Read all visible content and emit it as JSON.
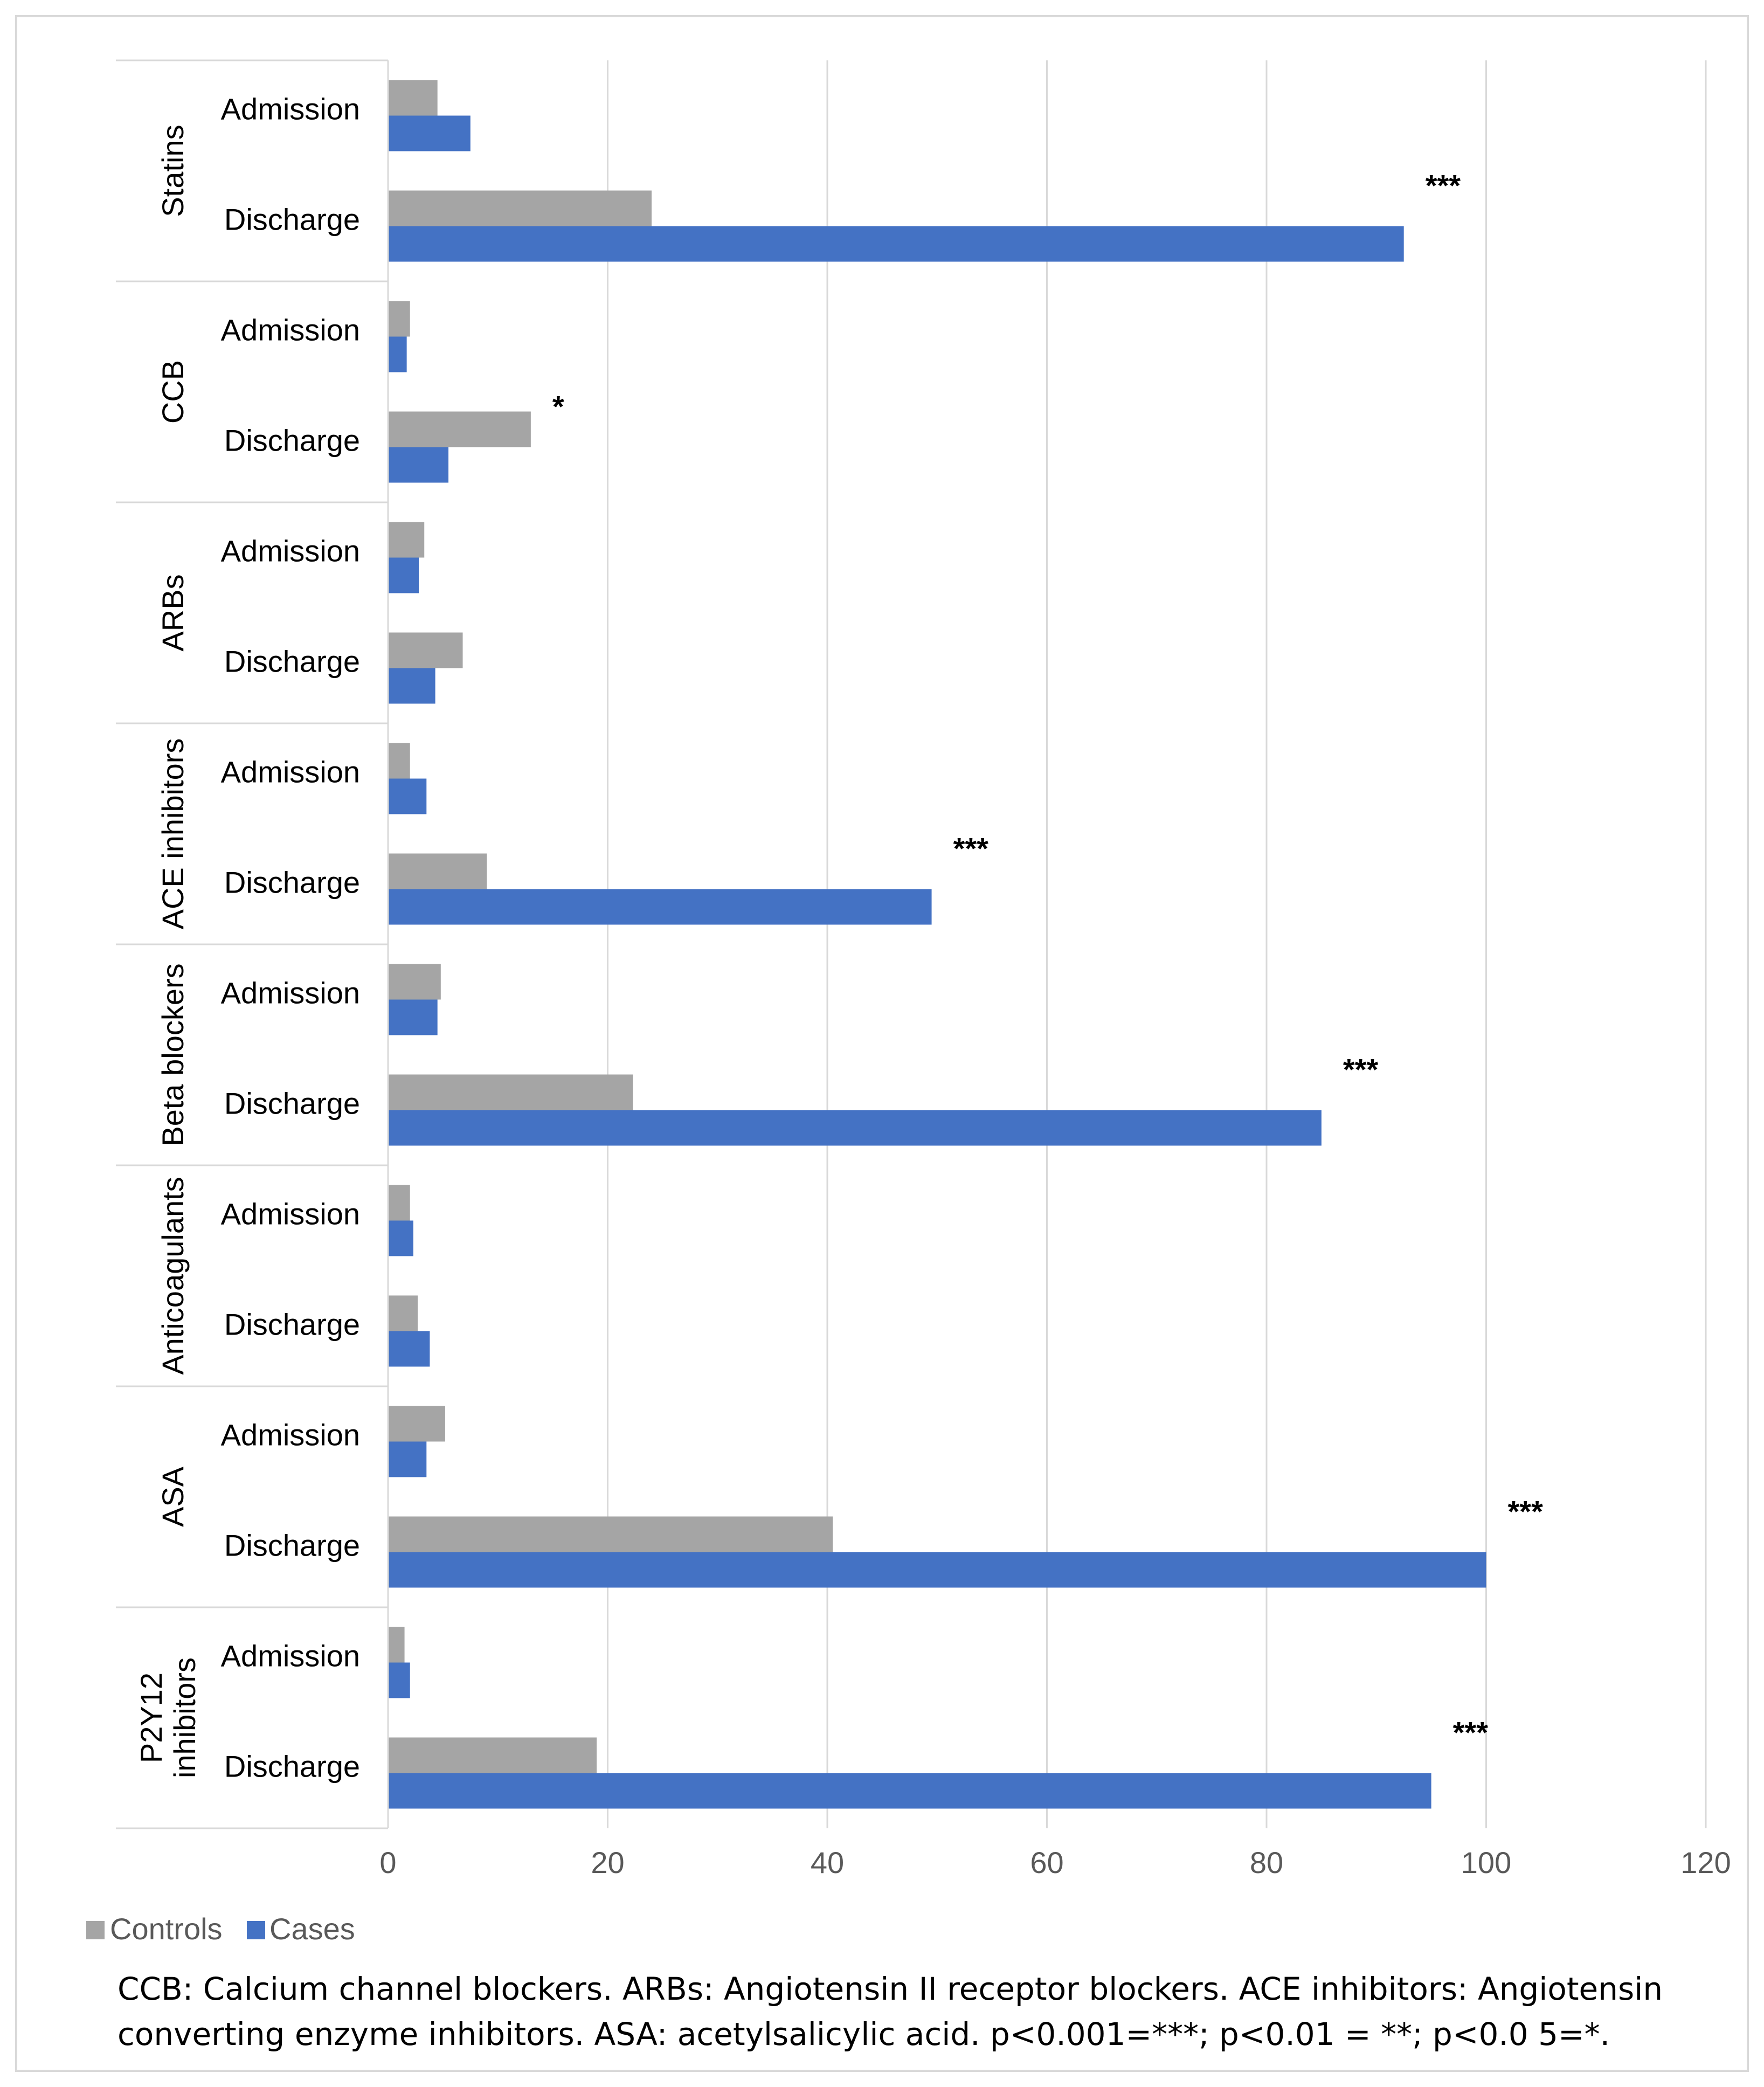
{
  "chart_data": {
    "type": "bar",
    "orientation": "horizontal",
    "groups": [
      {
        "name": "Statins",
        "sublabels": [
          "Admission",
          "Discharge"
        ],
        "controls": [
          4.5,
          24
        ],
        "cases": [
          7.5,
          92.5
        ],
        "significance": [
          "",
          "***"
        ]
      },
      {
        "name": "CCB",
        "sublabels": [
          "Admission",
          "Discharge"
        ],
        "controls": [
          2,
          13
        ],
        "cases": [
          1.7,
          5.5
        ],
        "significance": [
          "",
          "*"
        ]
      },
      {
        "name": "ARBs",
        "sublabels": [
          "Admission",
          "Discharge"
        ],
        "controls": [
          3.3,
          6.8
        ],
        "cases": [
          2.8,
          4.3
        ],
        "significance": [
          "",
          ""
        ]
      },
      {
        "name": "ACE inhibitors",
        "sublabels": [
          "Admission",
          "Discharge"
        ],
        "controls": [
          2,
          9
        ],
        "cases": [
          3.5,
          49.5
        ],
        "significance": [
          "",
          "***"
        ]
      },
      {
        "name": "Beta blockers",
        "sublabels": [
          "Admission",
          "Discharge"
        ],
        "controls": [
          4.8,
          22.3
        ],
        "cases": [
          4.5,
          85
        ],
        "significance": [
          "",
          "***"
        ]
      },
      {
        "name": "Anticoagulants",
        "sublabels": [
          "Admission",
          "Discharge"
        ],
        "controls": [
          2,
          2.7
        ],
        "cases": [
          2.3,
          3.8
        ],
        "significance": [
          "",
          ""
        ]
      },
      {
        "name": "ASA",
        "sublabels": [
          "Admission",
          "Discharge"
        ],
        "controls": [
          5.2,
          40.5
        ],
        "cases": [
          3.5,
          100
        ],
        "significance": [
          "",
          "***"
        ]
      },
      {
        "name": "P2Y12 inhibitors",
        "sublabels": [
          "Admission",
          "Discharge"
        ],
        "controls": [
          1.5,
          19
        ],
        "cases": [
          2,
          95
        ],
        "significance": [
          "",
          "***"
        ]
      }
    ],
    "series": [
      {
        "name": "Controls",
        "color": "#a5a5a5"
      },
      {
        "name": "Cases",
        "color": "#4472c4"
      }
    ],
    "xticks": [
      "0",
      "20",
      "40",
      "60",
      "80",
      "100",
      "120"
    ],
    "xlim": [
      0,
      120
    ],
    "grid": true,
    "legend_position": "bottom-left",
    "title": "",
    "xlabel": "",
    "ylabel": ""
  },
  "caption": {
    "line1": "CCB:  Calcium channel blockers. ARBs: Angiotensin II receptor blockers. ACE inhibitors: Angiotensin",
    "line2": "converting enzyme inhibitors. ASA: acetylsalicylic acid. p<0.001=***; p<0.01 = **; p<0.0 5=*."
  }
}
